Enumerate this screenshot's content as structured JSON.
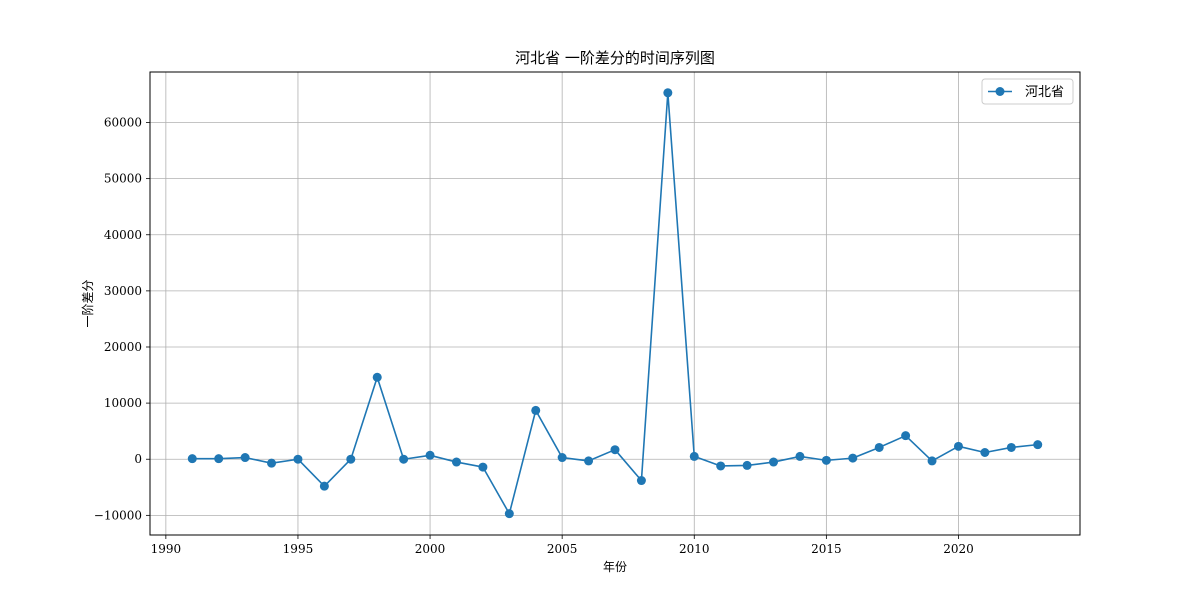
{
  "chart_data": {
    "type": "line",
    "title": "河北省 一阶差分的时间序列图",
    "xlabel": "年份",
    "ylabel": "一阶差分",
    "xlim": [
      1989.4,
      2024.6
    ],
    "ylim": [
      -13500,
      69000
    ],
    "xticks": [
      1990,
      1995,
      2000,
      2005,
      2010,
      2015,
      2020
    ],
    "yticks": [
      -10000,
      0,
      10000,
      20000,
      30000,
      40000,
      50000,
      60000
    ],
    "grid": true,
    "legend_position": "top-right",
    "series": [
      {
        "name": "河北省",
        "color": "#1f77b4",
        "marker": "circle",
        "x": [
          1991,
          1992,
          1993,
          1994,
          1995,
          1996,
          1997,
          1998,
          1999,
          2000,
          2001,
          2002,
          2003,
          2004,
          2005,
          2006,
          2007,
          2008,
          2009,
          2010,
          2011,
          2012,
          2013,
          2014,
          2015,
          2016,
          2017,
          2018,
          2019,
          2020,
          2021,
          2022,
          2023
        ],
        "y": [
          100,
          100,
          300,
          -700,
          0,
          -4800,
          0,
          14600,
          0,
          700,
          -500,
          -1400,
          -9700,
          8700,
          300,
          -300,
          1700,
          -3800,
          65300,
          500,
          -1200,
          -1100,
          -500,
          500,
          -200,
          200,
          2100,
          4200,
          -300,
          2300,
          1200,
          2100,
          2600
        ]
      }
    ]
  }
}
